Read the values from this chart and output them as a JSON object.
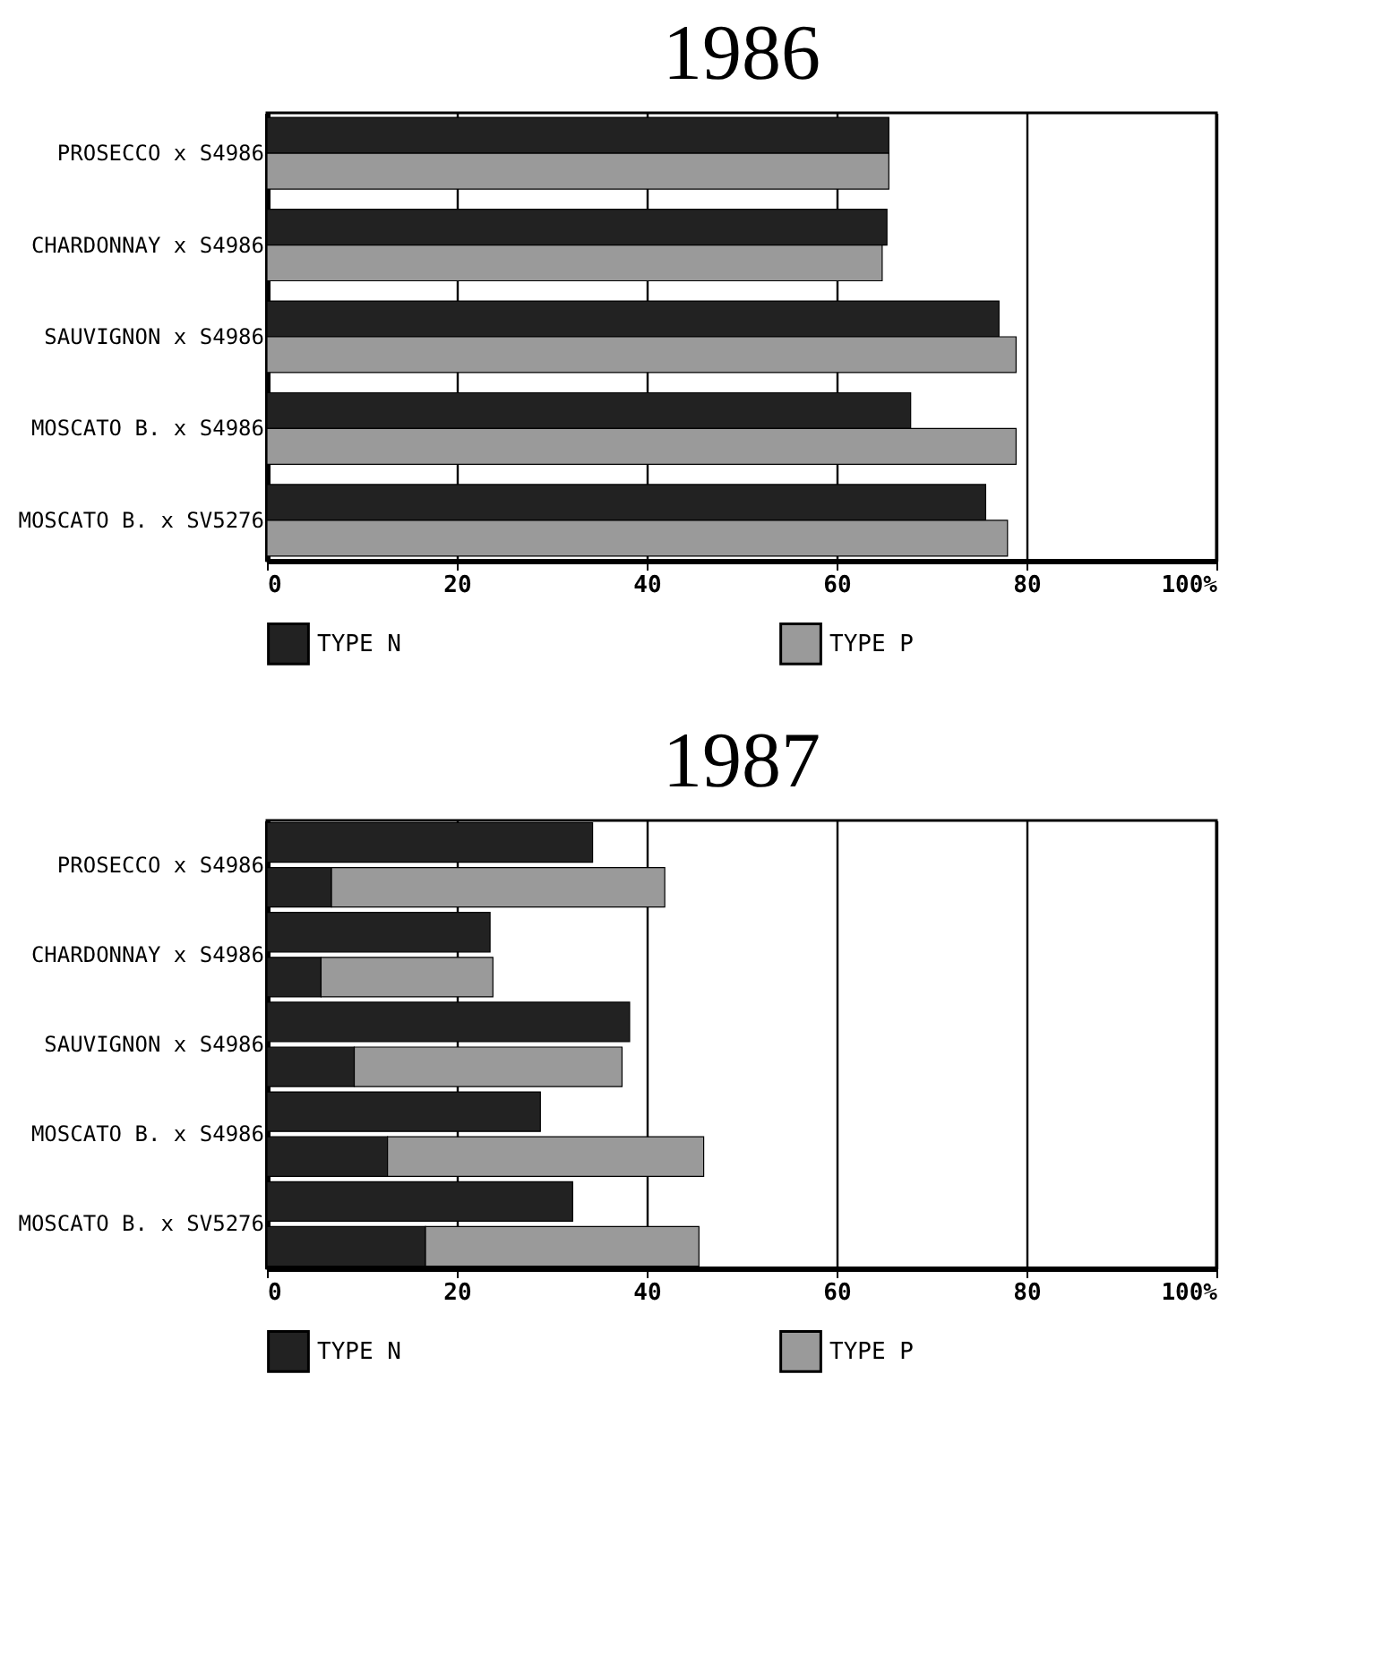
{
  "chart_data": [
    {
      "type": "bar",
      "title": "1986",
      "orientation": "horizontal",
      "categories": [
        "PROSECCO x S4986",
        "CHARDONNAY x S4986",
        "SAUVIGNON x S4986",
        "MOSCATO B. x S4986",
        "MOSCATO B. x SV5276"
      ],
      "series": [
        {
          "name": "TYPE  N",
          "color": "#222222",
          "values": [
            65.5,
            65.3,
            77.1,
            67.8,
            75.7
          ]
        },
        {
          "name": "TYPE  P",
          "color": "#9a9a9a",
          "values": [
            65.5,
            64.8,
            78.9,
            78.9,
            78.0
          ]
        }
      ],
      "xlim": [
        0,
        100
      ],
      "xticks": [
        0,
        20,
        40,
        60,
        80,
        {
          "value": 100,
          "label": "100%"
        }
      ],
      "grid": "x",
      "legend": "bottom"
    },
    {
      "type": "bar",
      "title": "1987",
      "orientation": "horizontal",
      "stacked": true,
      "categories": [
        "PROSECCO x S4986",
        null,
        "CHARDONNAY x S4986",
        null,
        "SAUVIGNON x S4986",
        null,
        "MOSCATO B. x S4986",
        null,
        "MOSCATO B. x SV5276",
        null
      ],
      "series": [
        {
          "name": "TYPE  N",
          "color": "#222222",
          "values": [
            34.3,
            null,
            23.5,
            null,
            38.2,
            null,
            28.8,
            null,
            32.2,
            null
          ]
        },
        {
          "color": "#222222",
          "values": [
            null,
            6.8,
            null,
            5.7,
            null,
            9.2,
            null,
            12.7,
            null,
            16.7
          ]
        },
        {
          "name": "TYPE  P",
          "color": "#9a9a9a",
          "values": [
            null,
            35.1,
            null,
            18.1,
            null,
            28.2,
            null,
            33.3,
            null,
            28.8
          ]
        }
      ],
      "xlim": [
        0,
        100
      ],
      "xticks": [
        0,
        20,
        40,
        60,
        80,
        {
          "value": 100,
          "label": "100%"
        }
      ],
      "grid": "x",
      "legend": "bottom"
    }
  ]
}
